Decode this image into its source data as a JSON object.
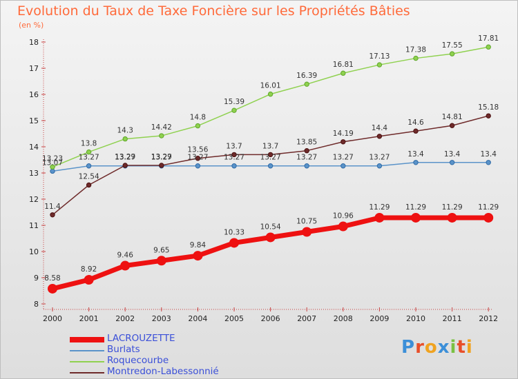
{
  "title": "Evolution du Taux de Taxe Foncière sur les Propriétés Bâties",
  "unit_label": "(en %)",
  "logo": {
    "text": "Proxiti",
    "letter_colors": [
      "#3c8fd8",
      "#e84f2a",
      "#f0a320",
      "#3c8fd8",
      "#7ac143",
      "#e84f2a",
      "#f0a320"
    ]
  },
  "chart_data": {
    "type": "line",
    "x": [
      "2000",
      "2001",
      "2002",
      "2003",
      "2004",
      "2005",
      "2006",
      "2007",
      "2008",
      "2009",
      "2010",
      "2011",
      "2012"
    ],
    "ylim": [
      8,
      18
    ],
    "yticks": [
      "8",
      "9",
      "10",
      "11",
      "12",
      "13",
      "14",
      "15",
      "16",
      "17",
      "18"
    ],
    "grid": false,
    "legend_position": "bottom-left",
    "series": [
      {
        "name": "Burlats",
        "color": "#5a93c9",
        "values": [
          13.07,
          13.27,
          13.27,
          13.27,
          13.27,
          13.27,
          13.27,
          13.27,
          13.27,
          13.27,
          13.4,
          13.4,
          13.4
        ],
        "labels": [
          "13.07",
          "13.27",
          "13.27",
          "13.27",
          "13.27",
          "13.27",
          "13.27",
          "13.27",
          "13.27",
          "13.27",
          "13.4",
          "13.4",
          "13.4"
        ]
      },
      {
        "name": "Roquecourbe",
        "color": "#8fd14f",
        "values": [
          13.23,
          13.8,
          14.3,
          14.42,
          14.8,
          15.39,
          16.01,
          16.39,
          16.81,
          17.13,
          17.38,
          17.55,
          17.81
        ],
        "labels": [
          "13.23",
          "13.8",
          "14.3",
          "14.42",
          "14.8",
          "15.39",
          "16.01",
          "16.39",
          "16.81",
          "17.13",
          "17.38",
          "17.55",
          "17.81"
        ]
      },
      {
        "name": "Montredon-Labessonnié",
        "color": "#6e2a2a",
        "values": [
          11.4,
          12.54,
          13.29,
          13.29,
          13.56,
          13.7,
          13.7,
          13.85,
          14.19,
          14.4,
          14.6,
          14.81,
          15.18
        ],
        "labels": [
          "11.4",
          "12.54",
          "13.29",
          "13.29",
          "13.56",
          "13.7",
          "13.7",
          "13.85",
          "14.19",
          "14.4",
          "14.6",
          "14.81",
          "15.18"
        ]
      },
      {
        "name": "LACROUZETTE",
        "color": "#ee1111",
        "values": [
          8.58,
          8.92,
          9.46,
          9.65,
          9.84,
          10.33,
          10.54,
          10.75,
          10.96,
          11.29,
          11.29,
          11.29,
          11.29
        ],
        "labels": [
          "8.58",
          "8.92",
          "9.46",
          "9.65",
          "9.84",
          "10.33",
          "10.54",
          "10.75",
          "10.96",
          "11.29",
          "11.29",
          "11.29",
          "11.29"
        ]
      }
    ],
    "legend": [
      "LACROUZETTE",
      "Burlats",
      "Roquecourbe",
      "Montredon-Labessonnié"
    ]
  }
}
